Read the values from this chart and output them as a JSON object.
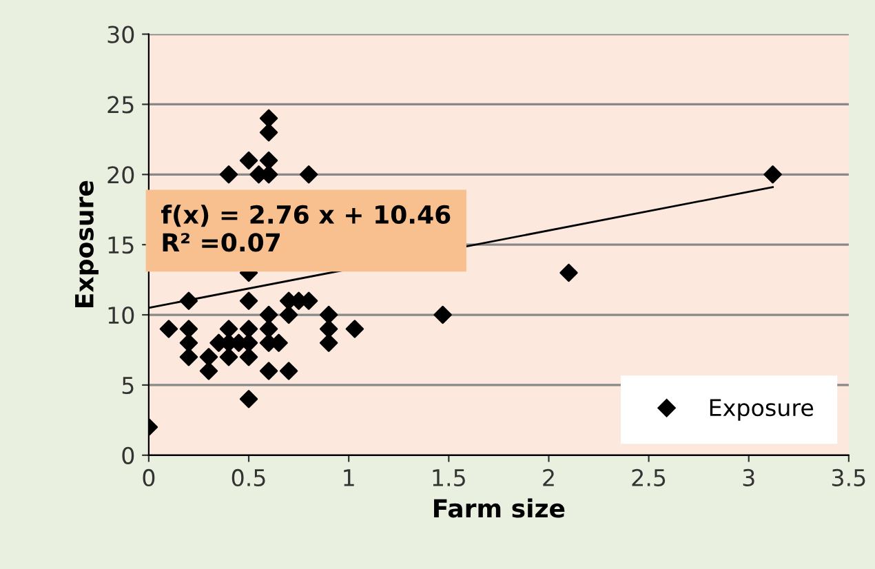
{
  "chart_data": {
    "type": "scatter",
    "xlabel": "Farm size",
    "ylabel": "Exposure",
    "xlim": [
      0,
      3.5
    ],
    "xticks": [
      0,
      0.5,
      1,
      1.5,
      2,
      2.5,
      3,
      3.5
    ],
    "ylim": [
      0,
      30
    ],
    "yticks": [
      0,
      5,
      10,
      15,
      20,
      25,
      30
    ],
    "grid": "y",
    "legend": "bottom right",
    "marker": "diamond",
    "series": [
      {
        "name": "Exposure",
        "color": "#000000",
        "x": [
          0,
          0.1,
          0.2,
          0.2,
          0.2,
          0.2,
          0.3,
          0.3,
          0.35,
          0.4,
          0.4,
          0.4,
          0.4,
          0.45,
          0.5,
          0.5,
          0.5,
          0.5,
          0.5,
          0.5,
          0.5,
          0.55,
          0.6,
          0.6,
          0.6,
          0.6,
          0.6,
          0.6,
          0.6,
          0.6,
          0.65,
          0.7,
          0.7,
          0.7,
          0.75,
          0.8,
          0.8,
          0.9,
          0.9,
          0.9,
          1.03,
          1.47,
          2.1,
          3.12
        ],
        "values": [
          2,
          9,
          11,
          9,
          8,
          7,
          6,
          7,
          8,
          9,
          8,
          7,
          20,
          8,
          21,
          9,
          8,
          7,
          4,
          11,
          13,
          20,
          24,
          23,
          21,
          20,
          10,
          9,
          8,
          6,
          8,
          11,
          10,
          6,
          11,
          20,
          11,
          10,
          9,
          8,
          9,
          10,
          13,
          20
        ]
      },
      {
        "color": "#000000",
        "type": "line",
        "marker": "none",
        "x": [
          0,
          3.12
        ],
        "values": [
          10.5,
          19.1
        ]
      }
    ],
    "annotations": [
      "f(x) = 2.76 x + 10.46",
      "R² =0.07"
    ]
  }
}
